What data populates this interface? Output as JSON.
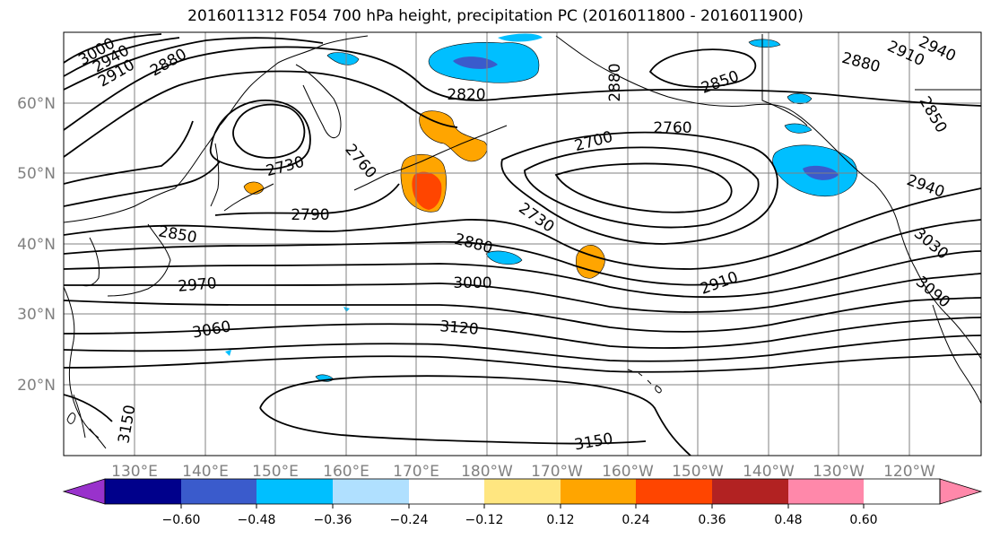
{
  "title": "2016011312 F054 700 hPa height, precipitation PC (2016011800 - 2016011900)",
  "map": {
    "lat_labels": [
      "60°N",
      "50°N",
      "40°N",
      "30°N",
      "20°N"
    ],
    "lon_labels": [
      "130°E",
      "140°E",
      "150°E",
      "160°E",
      "170°E",
      "180°W",
      "170°W",
      "160°W",
      "150°W",
      "140°W",
      "130°W",
      "120°W"
    ],
    "contour_labels": [
      {
        "text": "3000"
      },
      {
        "text": "2940"
      },
      {
        "text": "2910"
      },
      {
        "text": "2880"
      },
      {
        "text": "2820"
      },
      {
        "text": "2880"
      },
      {
        "text": "2850"
      },
      {
        "text": "2910"
      },
      {
        "text": "2940"
      },
      {
        "text": "2880"
      },
      {
        "text": "2850"
      },
      {
        "text": "2730"
      },
      {
        "text": "2760"
      },
      {
        "text": "2700"
      },
      {
        "text": "2760"
      },
      {
        "text": "2790"
      },
      {
        "text": "2730"
      },
      {
        "text": "2850"
      },
      {
        "text": "2880"
      },
      {
        "text": "2940"
      },
      {
        "text": "3030"
      },
      {
        "text": "3000"
      },
      {
        "text": "2910"
      },
      {
        "text": "2970"
      },
      {
        "text": "3090"
      },
      {
        "text": "3060"
      },
      {
        "text": "3120"
      },
      {
        "text": "3150"
      },
      {
        "text": "3150"
      }
    ],
    "colors": {
      "coast": "#000000",
      "contour": "#000000",
      "grid": "#808080"
    }
  },
  "colorbar": {
    "tick_labels": [
      "−0.60",
      "−0.48",
      "−0.36",
      "−0.24",
      "−0.12",
      "0.12",
      "0.24",
      "0.36",
      "0.48",
      "0.60"
    ],
    "colors": [
      "#9932cc",
      "#00008b",
      "#3a5bcc",
      "#00bfff",
      "#b0e0ff",
      "#ffffff",
      "#ffe680",
      "#ffa500",
      "#ff4500",
      "#b22222",
      "#ff88aa"
    ]
  }
}
